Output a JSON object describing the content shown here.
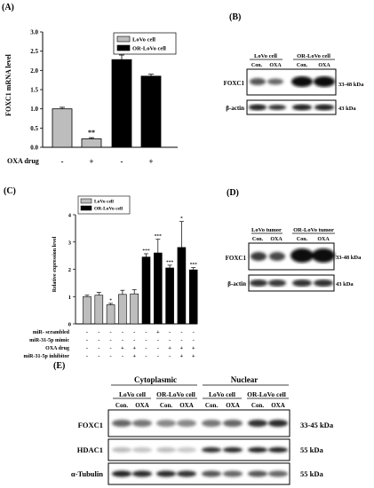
{
  "panels": {
    "A": "(A)",
    "B": "(B)",
    "C": "(C)",
    "D": "(D)",
    "E": "(E)"
  },
  "panel_a": {
    "ylabel": "FOXC1 mRNA level",
    "xrow_label": "OXA drug",
    "x_signs": [
      "-",
      "+",
      "-",
      "+"
    ],
    "legend": [
      "LoVo cell",
      "OR-LoVo cell"
    ],
    "significance": "**"
  },
  "chart_data": [
    {
      "type": "bar",
      "panel": "A",
      "categories": [
        "-",
        "+",
        "-",
        "+"
      ],
      "series": [
        {
          "name": "LoVo cell",
          "values": [
            1.0,
            0.22,
            null,
            null
          ],
          "errors": [
            0.04,
            0.03,
            null,
            null
          ]
        },
        {
          "name": "OR-LoVo cell",
          "values": [
            null,
            null,
            2.28,
            1.85
          ],
          "errors": [
            null,
            null,
            0.12,
            0.05
          ]
        }
      ],
      "ylabel": "FOXC1 mRNA level",
      "ylim": [
        0,
        3.0
      ],
      "yticks": [
        "0.0",
        "0.5",
        "1.0",
        "1.5",
        "2.0",
        "2.5",
        "3.0"
      ],
      "colors": {
        "LoVo cell": "#bdbdbd",
        "OR-LoVo cell": "#000000"
      },
      "legend_position": "top-right"
    },
    {
      "type": "bar",
      "panel": "C",
      "ylabel": "Relative expression level",
      "ylim": [
        0,
        4
      ],
      "yticks": [
        "0",
        "1",
        "2",
        "3",
        "4"
      ],
      "series": [
        {
          "name": "LoVo cell",
          "values": [
            1.0,
            1.05,
            0.7,
            1.08,
            1.1
          ],
          "errors": [
            0.05,
            0.1,
            0.05,
            0.15,
            0.15
          ]
        },
        {
          "name": "OR-LoVo cell",
          "values": [
            2.45,
            2.6,
            2.05,
            2.8,
            1.98
          ],
          "errors": [
            0.12,
            0.5,
            0.1,
            0.95,
            0.08
          ]
        }
      ],
      "colors": {
        "LoVo cell": "#bdbdbd",
        "OR-LoVo cell": "#000000"
      },
      "legend_position": "top-left"
    }
  ],
  "panel_c": {
    "legend": [
      "LoVo cell",
      "OR-LoVo cell"
    ],
    "stars_lovo": [
      "",
      "",
      "*",
      "",
      ""
    ],
    "stars_or": [
      "***",
      "***",
      "***",
      "*",
      "***"
    ],
    "rows": [
      {
        "label": "miR- scrambled",
        "signs": [
          "-",
          "-",
          "-",
          "-",
          "-",
          "-",
          "+",
          "-",
          "-",
          "-"
        ]
      },
      {
        "label": "miR-31-5p mimic",
        "signs": [
          "-",
          "-",
          "-",
          "-",
          "-",
          "-",
          "-",
          "-",
          "-",
          "-"
        ]
      },
      {
        "label": "OXA drug",
        "signs": [
          "-",
          "-",
          "-",
          "+",
          "+",
          "-",
          "-",
          "+",
          "+",
          "+"
        ]
      },
      {
        "label": "miR-31-5p inhibitor",
        "signs": [
          "-",
          "-",
          "-",
          "-",
          "+",
          "-",
          "-",
          "-",
          "+",
          "+"
        ]
      }
    ]
  },
  "panel_b": {
    "groups": [
      "LoVo cell",
      "OR-LoVo cell"
    ],
    "lanes": [
      "Con.",
      "OXA",
      "Con.",
      "OXA"
    ],
    "rows": [
      {
        "label": "FOXC1",
        "kda": "33-48 kDa"
      },
      {
        "label": "β-actin",
        "kda": "43 kDa"
      }
    ]
  },
  "panel_d": {
    "groups": [
      "LoVo tumor",
      "OR-LoVo tumor"
    ],
    "lanes": [
      "Con.",
      "OXA",
      "Con.",
      "OXA"
    ],
    "rows": [
      {
        "label": "FOXC1",
        "kda": "33-48 kDa"
      },
      {
        "label": "β-actin",
        "kda": "43 kDa"
      }
    ]
  },
  "panel_e": {
    "fractions": [
      "Cytoplasmic",
      "Nuclear"
    ],
    "groups": [
      "LoVo cell",
      "OR-LoVo cell",
      "LoVo cell",
      "OR-LoVo cell"
    ],
    "lanes": [
      "Con.",
      "OXA",
      "Con.",
      "OXA",
      "Con.",
      "OXA",
      "Con.",
      "OXA"
    ],
    "rows": [
      {
        "label": "FOXC1",
        "kda": "33-45 kDa"
      },
      {
        "label": "HDAC1",
        "kda": "55 kDa"
      },
      {
        "label": "α-Tubulin",
        "kda": "55 kDa"
      }
    ]
  }
}
